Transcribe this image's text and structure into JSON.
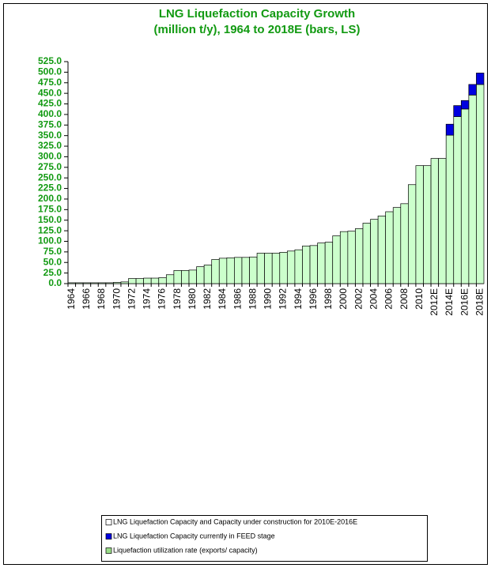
{
  "chart_data": {
    "type": "stacked-bar",
    "title": "LNG Liquefaction Capacity Growth",
    "subtitle": "(million t/y), 1964 to 2018E (bars, LS)",
    "categories": [
      "1964",
      null,
      "1966",
      null,
      "1968",
      null,
      "1970",
      null,
      "1972",
      null,
      "1974",
      null,
      "1976",
      null,
      "1978",
      null,
      "1980",
      null,
      "1982",
      null,
      "1984",
      null,
      "1986",
      null,
      "1988",
      null,
      "1990",
      null,
      "1992",
      null,
      "1994",
      null,
      "1996",
      null,
      "1998",
      null,
      "2000",
      null,
      "2002",
      null,
      "2004",
      null,
      "2006",
      null,
      "2008",
      null,
      "2010",
      null,
      "2012E",
      null,
      "2014E",
      null,
      "2016E",
      null,
      "2018E"
    ],
    "series": [
      {
        "name": "LNG Liquefaction Capacity and Capacity under construction for 2010E-2016E",
        "color": "#ccffcc",
        "values": [
          2,
          2,
          2,
          2,
          2,
          2,
          3,
          4,
          12,
          12,
          13,
          13,
          14,
          21,
          31,
          31,
          32,
          40,
          44,
          57,
          60,
          61,
          62,
          62,
          63,
          72,
          72,
          72,
          74,
          77,
          80,
          89,
          90,
          96,
          98,
          113,
          123,
          124,
          130,
          143,
          152,
          160,
          170,
          180,
          189,
          234,
          279,
          279,
          296,
          296,
          351,
          395,
          413,
          446,
          471
        ]
      },
      {
        "name": "LNG Liquefaction Capacity currently in FEED stage",
        "color": "#0000e0",
        "values": [
          null,
          null,
          null,
          null,
          null,
          null,
          null,
          null,
          null,
          null,
          null,
          null,
          null,
          null,
          null,
          null,
          null,
          null,
          null,
          null,
          null,
          null,
          null,
          null,
          null,
          null,
          null,
          null,
          null,
          null,
          null,
          null,
          null,
          null,
          null,
          null,
          null,
          null,
          null,
          null,
          null,
          null,
          null,
          null,
          null,
          null,
          null,
          null,
          null,
          null,
          26,
          26,
          20,
          25,
          27
        ]
      },
      {
        "name": "Liquefaction utilization rate (exports/ capacity)",
        "color": "#99dd88",
        "values": [
          null,
          null,
          null,
          null,
          null,
          null,
          null,
          null,
          null,
          null,
          null,
          null,
          null,
          null,
          null,
          null,
          null,
          null,
          null,
          null,
          null,
          null,
          null,
          null,
          null,
          null,
          null,
          null,
          null,
          null,
          null,
          null,
          null,
          null,
          null,
          null,
          null,
          null,
          null,
          null,
          null,
          null,
          null,
          null,
          null,
          null,
          null,
          null,
          null,
          null,
          null,
          null,
          null,
          null,
          null
        ]
      }
    ],
    "ylim": [
      0,
      525
    ],
    "yticks": [
      {
        "value": 0,
        "label": "0.0"
      },
      {
        "value": 25,
        "label": "25.0"
      },
      {
        "value": 50,
        "label": "50.0"
      },
      {
        "value": 75,
        "label": "75.0"
      },
      {
        "value": 100,
        "label": "100.0"
      },
      {
        "value": 125,
        "label": "125.0"
      },
      {
        "value": 150,
        "label": "150.0"
      },
      {
        "value": 175,
        "label": "175.0"
      },
      {
        "value": 200,
        "label": "200.0"
      },
      {
        "value": 225,
        "label": "225.0"
      },
      {
        "value": 250,
        "label": "250.0"
      },
      {
        "value": 275,
        "label": "275.0"
      },
      {
        "value": 300,
        "label": "300.0"
      },
      {
        "value": 325,
        "label": "325.0"
      },
      {
        "value": 350,
        "label": "350.0"
      },
      {
        "value": 375,
        "label": "375.0"
      },
      {
        "value": 400,
        "label": "400.0"
      },
      {
        "value": 425,
        "label": "425.0"
      },
      {
        "value": 450,
        "label": "450.0"
      },
      {
        "value": 475,
        "label": "475.0"
      },
      {
        "value": 500,
        "label": "500.0"
      },
      {
        "value": 525,
        "label": "525.0"
      }
    ],
    "grid": false
  }
}
